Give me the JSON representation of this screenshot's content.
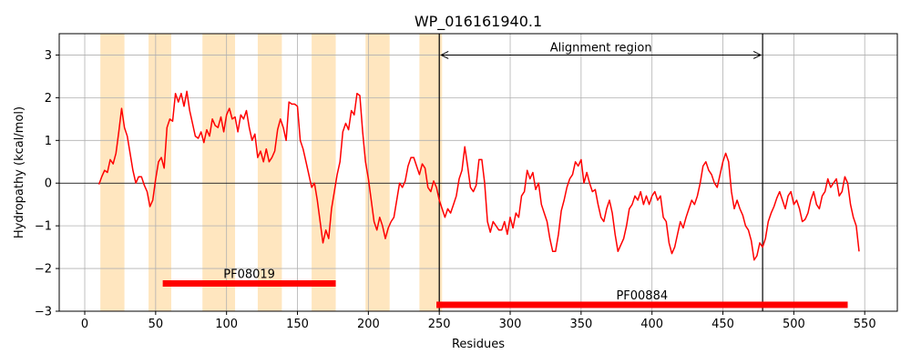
{
  "chart_data": {
    "type": "line",
    "title": "WP_016161940.1",
    "xlabel": "Residues",
    "ylabel": "Hydropathy (kcal/mol)",
    "xlim": [
      -18,
      573
    ],
    "ylim": [
      -3,
      3.5
    ],
    "xticks": [
      0,
      50,
      100,
      150,
      200,
      250,
      300,
      350,
      400,
      450,
      500,
      550
    ],
    "yticks": [
      -3,
      -2,
      -1,
      0,
      1,
      2,
      3
    ],
    "xtick_labels": [
      "0",
      "50",
      "100",
      "150",
      "200",
      "250",
      "300",
      "350",
      "400",
      "450",
      "500",
      "550"
    ],
    "ytick_labels": [
      "−3",
      "−2",
      "−1",
      "0",
      "1",
      "2",
      "3"
    ],
    "grid": true,
    "zero_line": true,
    "colors": {
      "line": "#ff0000",
      "band": "#ffe6bf",
      "domain_bar": "#ff0000",
      "grid": "#b0b0b0"
    },
    "highlight_bands": [
      [
        11,
        28
      ],
      [
        45,
        61
      ],
      [
        83,
        106
      ],
      [
        122,
        139
      ],
      [
        160,
        177
      ],
      [
        198,
        215
      ],
      [
        236,
        252
      ]
    ],
    "alignment_region": {
      "start": 250,
      "end": 478,
      "label": "Alignment region",
      "arrow_y": 3.0
    },
    "domains": [
      {
        "name": "PF08019",
        "start": 55,
        "end": 177,
        "y": -2.35
      },
      {
        "name": "PF00884",
        "start": 248,
        "end": 538,
        "y": -2.85
      }
    ],
    "series": [
      {
        "points": [
          [
            10,
            -0.03
          ],
          [
            12,
            0.15
          ],
          [
            14,
            0.3
          ],
          [
            16,
            0.25
          ],
          [
            18,
            0.55
          ],
          [
            20,
            0.45
          ],
          [
            22,
            0.7
          ],
          [
            24,
            1.2
          ],
          [
            26,
            1.75
          ],
          [
            28,
            1.3
          ],
          [
            30,
            1.1
          ],
          [
            32,
            0.7
          ],
          [
            34,
            0.3
          ],
          [
            36,
            0.0
          ],
          [
            38,
            0.15
          ],
          [
            40,
            0.15
          ],
          [
            42,
            -0.05
          ],
          [
            44,
            -0.2
          ],
          [
            46,
            -0.55
          ],
          [
            48,
            -0.4
          ],
          [
            50,
            0.1
          ],
          [
            52,
            0.5
          ],
          [
            54,
            0.6
          ],
          [
            56,
            0.35
          ],
          [
            58,
            1.3
          ],
          [
            60,
            1.5
          ],
          [
            62,
            1.45
          ],
          [
            64,
            2.1
          ],
          [
            66,
            1.9
          ],
          [
            68,
            2.1
          ],
          [
            70,
            1.8
          ],
          [
            72,
            2.15
          ],
          [
            74,
            1.7
          ],
          [
            76,
            1.4
          ],
          [
            78,
            1.1
          ],
          [
            80,
            1.05
          ],
          [
            82,
            1.2
          ],
          [
            84,
            0.95
          ],
          [
            86,
            1.25
          ],
          [
            88,
            1.1
          ],
          [
            90,
            1.5
          ],
          [
            92,
            1.35
          ],
          [
            94,
            1.3
          ],
          [
            96,
            1.55
          ],
          [
            98,
            1.2
          ],
          [
            100,
            1.6
          ],
          [
            102,
            1.75
          ],
          [
            104,
            1.5
          ],
          [
            106,
            1.55
          ],
          [
            108,
            1.2
          ],
          [
            110,
            1.6
          ],
          [
            112,
            1.5
          ],
          [
            114,
            1.7
          ],
          [
            116,
            1.3
          ],
          [
            118,
            1.0
          ],
          [
            120,
            1.15
          ],
          [
            122,
            0.6
          ],
          [
            124,
            0.75
          ],
          [
            126,
            0.5
          ],
          [
            128,
            0.8
          ],
          [
            130,
            0.5
          ],
          [
            132,
            0.6
          ],
          [
            134,
            0.75
          ],
          [
            136,
            1.25
          ],
          [
            138,
            1.5
          ],
          [
            140,
            1.3
          ],
          [
            142,
            1.0
          ],
          [
            144,
            1.9
          ],
          [
            146,
            1.85
          ],
          [
            148,
            1.85
          ],
          [
            150,
            1.8
          ],
          [
            152,
            1.0
          ],
          [
            154,
            0.8
          ],
          [
            156,
            0.5
          ],
          [
            158,
            0.2
          ],
          [
            160,
            -0.1
          ],
          [
            162,
            0.0
          ],
          [
            164,
            -0.4
          ],
          [
            166,
            -0.9
          ],
          [
            168,
            -1.4
          ],
          [
            170,
            -1.1
          ],
          [
            172,
            -1.3
          ],
          [
            174,
            -0.6
          ],
          [
            176,
            -0.2
          ],
          [
            178,
            0.2
          ],
          [
            180,
            0.5
          ],
          [
            182,
            1.2
          ],
          [
            184,
            1.4
          ],
          [
            186,
            1.25
          ],
          [
            188,
            1.7
          ],
          [
            190,
            1.6
          ],
          [
            192,
            2.1
          ],
          [
            194,
            2.05
          ],
          [
            196,
            1.2
          ],
          [
            198,
            0.5
          ],
          [
            200,
            0.1
          ],
          [
            202,
            -0.4
          ],
          [
            204,
            -0.9
          ],
          [
            206,
            -1.1
          ],
          [
            208,
            -0.8
          ],
          [
            210,
            -1.0
          ],
          [
            212,
            -1.3
          ],
          [
            214,
            -1.05
          ],
          [
            216,
            -0.9
          ],
          [
            218,
            -0.8
          ],
          [
            220,
            -0.4
          ],
          [
            222,
            0.0
          ],
          [
            224,
            -0.1
          ],
          [
            226,
            0.05
          ],
          [
            228,
            0.4
          ],
          [
            230,
            0.6
          ],
          [
            232,
            0.6
          ],
          [
            234,
            0.4
          ],
          [
            236,
            0.2
          ],
          [
            238,
            0.45
          ],
          [
            240,
            0.35
          ],
          [
            242,
            -0.1
          ],
          [
            244,
            -0.2
          ],
          [
            246,
            0.05
          ],
          [
            248,
            -0.1
          ],
          [
            250,
            -0.4
          ],
          [
            252,
            -0.6
          ],
          [
            254,
            -0.8
          ],
          [
            256,
            -0.6
          ],
          [
            258,
            -0.7
          ],
          [
            260,
            -0.5
          ],
          [
            262,
            -0.3
          ],
          [
            264,
            0.1
          ],
          [
            266,
            0.3
          ],
          [
            268,
            0.85
          ],
          [
            270,
            0.4
          ],
          [
            272,
            -0.1
          ],
          [
            274,
            -0.2
          ],
          [
            276,
            -0.05
          ],
          [
            278,
            0.55
          ],
          [
            280,
            0.55
          ],
          [
            282,
            0.0
          ],
          [
            284,
            -0.9
          ],
          [
            286,
            -1.15
          ],
          [
            288,
            -0.9
          ],
          [
            290,
            -1.0
          ],
          [
            292,
            -1.1
          ],
          [
            294,
            -1.1
          ],
          [
            296,
            -0.9
          ],
          [
            298,
            -1.2
          ],
          [
            300,
            -0.8
          ],
          [
            302,
            -1.05
          ],
          [
            304,
            -0.7
          ],
          [
            306,
            -0.8
          ],
          [
            308,
            -0.3
          ],
          [
            310,
            -0.2
          ],
          [
            312,
            0.3
          ],
          [
            314,
            0.1
          ],
          [
            316,
            0.25
          ],
          [
            318,
            -0.15
          ],
          [
            320,
            0.0
          ],
          [
            322,
            -0.5
          ],
          [
            324,
            -0.7
          ],
          [
            326,
            -0.9
          ],
          [
            328,
            -1.3
          ],
          [
            330,
            -1.6
          ],
          [
            332,
            -1.6
          ],
          [
            334,
            -1.2
          ],
          [
            336,
            -0.65
          ],
          [
            338,
            -0.4
          ],
          [
            340,
            -0.1
          ],
          [
            342,
            0.1
          ],
          [
            344,
            0.2
          ],
          [
            346,
            0.5
          ],
          [
            348,
            0.4
          ],
          [
            350,
            0.55
          ],
          [
            352,
            0.0
          ],
          [
            354,
            0.25
          ],
          [
            356,
            0.0
          ],
          [
            358,
            -0.2
          ],
          [
            360,
            -0.15
          ],
          [
            362,
            -0.5
          ],
          [
            364,
            -0.8
          ],
          [
            366,
            -0.9
          ],
          [
            368,
            -0.6
          ],
          [
            370,
            -0.4
          ],
          [
            372,
            -0.7
          ],
          [
            374,
            -1.2
          ],
          [
            376,
            -1.6
          ],
          [
            378,
            -1.45
          ],
          [
            380,
            -1.3
          ],
          [
            382,
            -1.0
          ],
          [
            384,
            -0.6
          ],
          [
            386,
            -0.5
          ],
          [
            388,
            -0.3
          ],
          [
            390,
            -0.4
          ],
          [
            392,
            -0.2
          ],
          [
            394,
            -0.5
          ],
          [
            396,
            -0.3
          ],
          [
            398,
            -0.5
          ],
          [
            400,
            -0.3
          ],
          [
            402,
            -0.2
          ],
          [
            404,
            -0.4
          ],
          [
            406,
            -0.3
          ],
          [
            408,
            -0.8
          ],
          [
            410,
            -0.9
          ],
          [
            412,
            -1.4
          ],
          [
            414,
            -1.65
          ],
          [
            416,
            -1.5
          ],
          [
            418,
            -1.2
          ],
          [
            420,
            -0.9
          ],
          [
            422,
            -1.05
          ],
          [
            424,
            -0.8
          ],
          [
            426,
            -0.6
          ],
          [
            428,
            -0.4
          ],
          [
            430,
            -0.5
          ],
          [
            432,
            -0.3
          ],
          [
            434,
            0.0
          ],
          [
            436,
            0.4
          ],
          [
            438,
            0.5
          ],
          [
            440,
            0.3
          ],
          [
            442,
            0.2
          ],
          [
            444,
            0.0
          ],
          [
            446,
            -0.1
          ],
          [
            448,
            0.2
          ],
          [
            450,
            0.5
          ],
          [
            452,
            0.7
          ],
          [
            454,
            0.5
          ],
          [
            456,
            -0.2
          ],
          [
            458,
            -0.6
          ],
          [
            460,
            -0.4
          ],
          [
            462,
            -0.6
          ],
          [
            464,
            -0.75
          ],
          [
            466,
            -1.0
          ],
          [
            468,
            -1.1
          ],
          [
            470,
            -1.35
          ],
          [
            472,
            -1.8
          ],
          [
            474,
            -1.7
          ],
          [
            476,
            -1.4
          ],
          [
            478,
            -1.5
          ],
          [
            480,
            -1.3
          ],
          [
            482,
            -0.9
          ],
          [
            484,
            -0.7
          ],
          [
            486,
            -0.55
          ],
          [
            488,
            -0.35
          ],
          [
            490,
            -0.2
          ],
          [
            492,
            -0.4
          ],
          [
            494,
            -0.6
          ],
          [
            496,
            -0.3
          ],
          [
            498,
            -0.2
          ],
          [
            500,
            -0.5
          ],
          [
            502,
            -0.4
          ],
          [
            504,
            -0.6
          ],
          [
            506,
            -0.9
          ],
          [
            508,
            -0.85
          ],
          [
            510,
            -0.7
          ],
          [
            512,
            -0.4
          ],
          [
            514,
            -0.2
          ],
          [
            516,
            -0.5
          ],
          [
            518,
            -0.6
          ],
          [
            520,
            -0.3
          ],
          [
            522,
            -0.2
          ],
          [
            524,
            0.1
          ],
          [
            526,
            -0.1
          ],
          [
            528,
            0.0
          ],
          [
            530,
            0.1
          ],
          [
            532,
            -0.3
          ],
          [
            534,
            -0.2
          ],
          [
            536,
            0.15
          ],
          [
            538,
            0.0
          ],
          [
            540,
            -0.5
          ],
          [
            542,
            -0.8
          ],
          [
            544,
            -1.0
          ],
          [
            546,
            -1.6
          ]
        ]
      }
    ]
  }
}
